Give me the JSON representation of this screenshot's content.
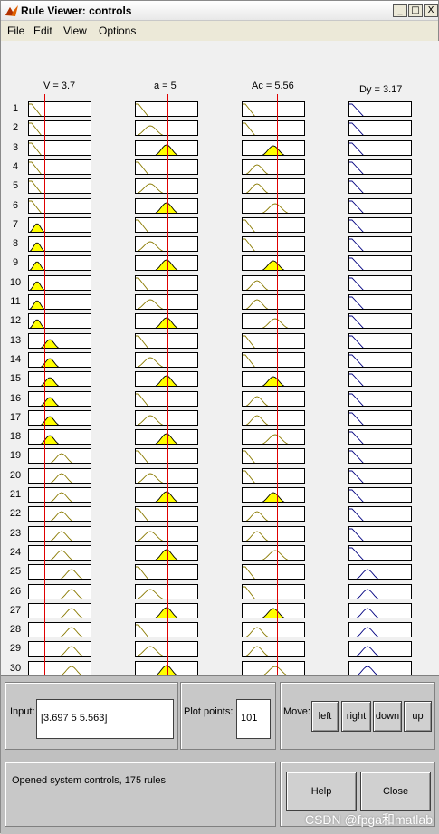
{
  "window": {
    "title": "Rule Viewer: controls"
  },
  "titlebar_buttons": {
    "minimize": "_",
    "maximize": "□",
    "close": "X"
  },
  "menu": [
    "File",
    "Edit",
    "View",
    "Options"
  ],
  "columns": [
    {
      "header": "V = 3.7"
    },
    {
      "header": "a = 5"
    },
    {
      "header": "Ac = 5.56"
    },
    {
      "header": "Dy = 3.17"
    }
  ],
  "rules": {
    "visible_count": 30,
    "numbers": [
      "1",
      "2",
      "3",
      "4",
      "5",
      "6",
      "7",
      "8",
      "9",
      "10",
      "11",
      "12",
      "13",
      "14",
      "15",
      "16",
      "17",
      "18",
      "19",
      "20",
      "21",
      "22",
      "23",
      "24",
      "25",
      "26",
      "27",
      "28",
      "29",
      "30"
    ]
  },
  "input": {
    "label": "Input:",
    "value": "[3.697 5 5.563]"
  },
  "plot_points": {
    "label": "Plot points:",
    "value": "101"
  },
  "move": {
    "label": "Move:",
    "buttons": [
      "left",
      "right",
      "down",
      "up"
    ]
  },
  "status": {
    "text": "Opened system controls, 175 rules"
  },
  "actions": {
    "help": "Help",
    "close": "Close"
  },
  "watermark": "CSDN @fpga和matlab",
  "colors": {
    "fill": "#ffff00",
    "input_curve": "#8a7a00",
    "output_curve": "#000080",
    "indicator": "#e00000"
  }
}
